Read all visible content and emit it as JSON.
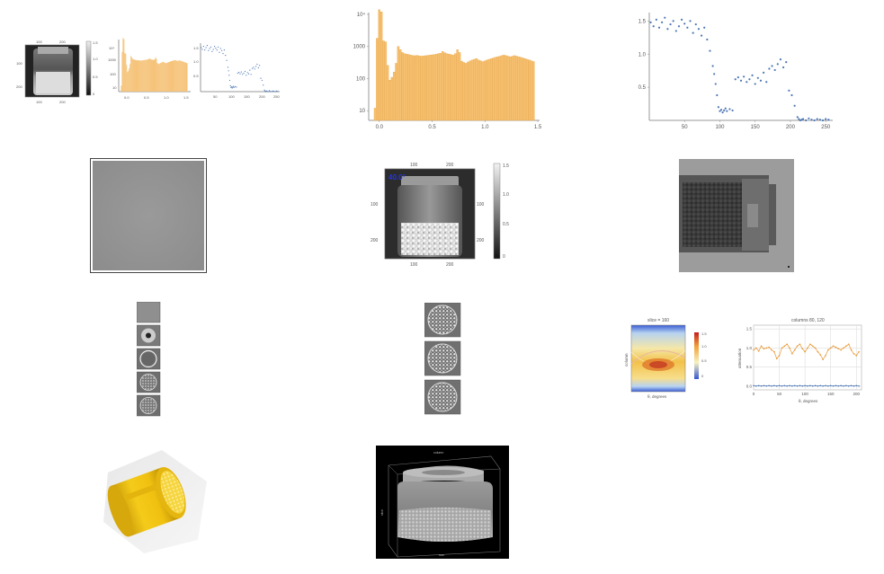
{
  "panels": {
    "mini_image": {
      "ticks_top": [
        "100",
        "200"
      ],
      "ticks_left": [
        "100",
        "200"
      ],
      "ticks_bottom": [
        "100",
        "200"
      ],
      "colorbar_ticks": [
        "1.5",
        "1.0",
        "0.5",
        "0"
      ]
    },
    "mini_hist": {
      "yticks": [
        "10⁴",
        "1000",
        "100",
        "10"
      ],
      "xticks": [
        "0.0",
        "0.5",
        "1.0",
        "1.5"
      ]
    },
    "mini_scatter": {
      "yticks": [
        "1.5",
        "1.0",
        "0.5"
      ],
      "xticks": [
        "50",
        "100",
        "150",
        "200",
        "250"
      ]
    },
    "projection_image": {
      "label": "40.0°",
      "ticks_top": [
        "100",
        "200"
      ],
      "ticks_left": [
        "100",
        "200"
      ],
      "ticks_bottom": [
        "100",
        "200"
      ],
      "ticks_right": [
        "100",
        "200"
      ],
      "colorbar_ticks": [
        "1.5",
        "1.0",
        "0.5",
        "0"
      ]
    },
    "sinogram": {
      "title": "slice = 160",
      "xlabel": "θ, degrees",
      "ylabel": "column",
      "colorbar_ticks": [
        "1.5",
        "1.0",
        "0.5",
        "0"
      ]
    },
    "columns_plot": {
      "title": "columns 80, 120",
      "xlabel": "θ, degrees",
      "ylabel": "attenuation",
      "yticks": [
        "1.5",
        "1.0",
        "0.5",
        "0.0"
      ],
      "xticks": [
        "0",
        "50",
        "100",
        "150",
        "200"
      ]
    },
    "volume_render": {
      "axis_label_top": "column",
      "axis_label_bottom": "row",
      "axis_label_left": "slice"
    }
  },
  "colors": {
    "hist_bar": "#f5c072",
    "hist_edge": "#e9a13a",
    "scatter_blue": "#4f79b5",
    "scatter_orange": "#e8962e",
    "volume_yellow": "#f2c61a"
  },
  "chart_data": [
    {
      "type": "bar",
      "title": "",
      "xlabel": "",
      "ylabel": "",
      "yscale": "log",
      "xlim": [
        -0.1,
        1.5
      ],
      "ylim": [
        5,
        10000
      ],
      "xticks": [
        "0.0",
        "0.5",
        "1.0",
        "1.5"
      ],
      "yticks": [
        "10",
        "100",
        "1000",
        "10⁴"
      ],
      "x": [
        -0.04,
        -0.02,
        0.0,
        0.02,
        0.04,
        0.06,
        0.08,
        0.1,
        0.12,
        0.14,
        0.16,
        0.18,
        0.2,
        0.22,
        0.24,
        0.26,
        0.28,
        0.3,
        0.32,
        0.34,
        0.36,
        0.38,
        0.4,
        0.42,
        0.44,
        0.46,
        0.48,
        0.5,
        0.52,
        0.54,
        0.56,
        0.58,
        0.6,
        0.62,
        0.64,
        0.66,
        0.68,
        0.7,
        0.72,
        0.74,
        0.76,
        0.78,
        0.8,
        0.82,
        0.84,
        0.86,
        0.88,
        0.9,
        0.92,
        0.94,
        0.96,
        0.98,
        1.0,
        1.02,
        1.04,
        1.06,
        1.08,
        1.1,
        1.12,
        1.14,
        1.16,
        1.18,
        1.2,
        1.22,
        1.24,
        1.26,
        1.28,
        1.3,
        1.32,
        1.34,
        1.36,
        1.38,
        1.4,
        1.42,
        1.44,
        1.46
      ],
      "values": [
        12,
        1800,
        14000,
        12000,
        1500,
        1400,
        260,
        90,
        110,
        160,
        300,
        1000,
        800,
        650,
        600,
        580,
        560,
        540,
        520,
        520,
        530,
        510,
        500,
        510,
        520,
        530,
        540,
        550,
        560,
        580,
        600,
        620,
        700,
        640,
        600,
        580,
        560,
        540,
        600,
        800,
        650,
        350,
        320,
        300,
        330,
        360,
        380,
        400,
        420,
        380,
        360,
        340,
        360,
        380,
        400,
        420,
        440,
        460,
        480,
        500,
        520,
        540,
        520,
        500,
        480,
        500,
        520,
        500,
        480,
        460,
        440,
        420,
        400,
        380,
        360,
        340
      ]
    },
    {
      "type": "scatter",
      "title": "",
      "xlabel": "",
      "ylabel": "",
      "xlim": [
        0,
        260
      ],
      "ylim": [
        0,
        1.6
      ],
      "xticks": [
        "50",
        "100",
        "150",
        "200",
        "250"
      ],
      "yticks": [
        "0.5",
        "1.0",
        "1.5"
      ],
      "x": [
        2,
        6,
        10,
        14,
        18,
        22,
        26,
        30,
        34,
        38,
        42,
        46,
        50,
        54,
        58,
        62,
        66,
        70,
        74,
        78,
        82,
        86,
        90,
        92,
        94,
        96,
        98,
        100,
        102,
        104,
        106,
        108,
        110,
        114,
        118,
        122,
        126,
        130,
        134,
        138,
        142,
        146,
        150,
        154,
        158,
        162,
        166,
        170,
        174,
        178,
        182,
        186,
        190,
        194,
        198,
        202,
        206,
        210,
        212,
        214,
        216,
        218,
        222,
        226,
        230,
        234,
        238,
        242,
        246,
        250,
        254
      ],
      "values": [
        1.48,
        1.42,
        1.52,
        1.4,
        1.48,
        1.55,
        1.38,
        1.45,
        1.5,
        1.35,
        1.42,
        1.52,
        1.46,
        1.4,
        1.5,
        1.32,
        1.45,
        1.38,
        1.28,
        1.4,
        1.22,
        1.05,
        0.82,
        0.7,
        0.55,
        0.38,
        0.2,
        0.14,
        0.16,
        0.12,
        0.15,
        0.18,
        0.14,
        0.17,
        0.15,
        0.62,
        0.65,
        0.6,
        0.66,
        0.58,
        0.62,
        0.68,
        0.55,
        0.64,
        0.6,
        0.72,
        0.58,
        0.78,
        0.82,
        0.76,
        0.85,
        0.92,
        0.8,
        0.88,
        0.45,
        0.38,
        0.22,
        0.05,
        0.02,
        0.0,
        0.01,
        0.02,
        0.0,
        0.03,
        0.01,
        0.0,
        0.02,
        0.01,
        0.0,
        0.02,
        0.01
      ]
    },
    {
      "type": "line",
      "title": "columns 80, 120",
      "xlabel": "θ, degrees",
      "ylabel": "attenuation",
      "xlim": [
        0,
        210
      ],
      "ylim": [
        -0.1,
        1.6
      ],
      "xticks": [
        "0",
        "50",
        "100",
        "150",
        "200"
      ],
      "yticks": [
        "0.0",
        "0.5",
        "1.0",
        "1.5"
      ],
      "series": [
        {
          "x": [
            0,
            5,
            10,
            15,
            20,
            25,
            30,
            35,
            40,
            45,
            50,
            55,
            60,
            65,
            70,
            75,
            80,
            85,
            90,
            95,
            100,
            105,
            110,
            115,
            120,
            125,
            130,
            135,
            140,
            145,
            150,
            155,
            160,
            165,
            170,
            175,
            180,
            185,
            190,
            195,
            200,
            205
          ],
          "values": [
            0.95,
            1.0,
            0.92,
            1.05,
            0.98,
            1.0,
            1.02,
            0.95,
            0.9,
            0.72,
            0.8,
            1.0,
            1.05,
            1.1,
            1.0,
            0.85,
            0.95,
            1.05,
            1.1,
            0.98,
            0.9,
            1.0,
            1.1,
            1.05,
            1.0,
            0.9,
            0.82,
            0.7,
            0.8,
            0.95,
            1.0,
            1.05,
            1.02,
            0.98,
            0.95,
            1.0,
            1.05,
            1.1,
            0.95,
            0.85,
            0.8,
            0.9
          ]
        },
        {
          "x": [
            0,
            5,
            10,
            15,
            20,
            25,
            30,
            35,
            40,
            45,
            50,
            55,
            60,
            65,
            70,
            75,
            80,
            85,
            90,
            95,
            100,
            105,
            110,
            115,
            120,
            125,
            130,
            135,
            140,
            145,
            150,
            155,
            160,
            165,
            170,
            175,
            180,
            185,
            190,
            195,
            200,
            205
          ],
          "values": [
            0.01,
            0.0,
            0.01,
            0.0,
            0.01,
            0.0,
            0.01,
            0.0,
            0.01,
            0.0,
            0.01,
            0.0,
            0.01,
            0.0,
            0.01,
            0.0,
            0.01,
            0.0,
            0.01,
            0.0,
            0.01,
            0.0,
            0.01,
            0.0,
            0.01,
            0.0,
            0.01,
            0.0,
            0.01,
            0.0,
            0.01,
            0.0,
            0.01,
            0.0,
            0.01,
            0.0,
            0.01,
            0.0,
            0.01,
            0.0,
            0.01,
            0.0
          ]
        }
      ]
    }
  ]
}
